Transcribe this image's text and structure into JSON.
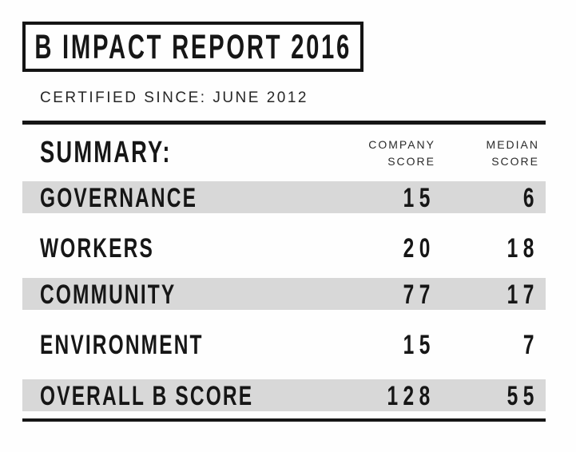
{
  "colors": {
    "ink": "#161616",
    "row_highlight": "#d8d8d8",
    "background": "#fefefe"
  },
  "report": {
    "title": "B IMPACT REPORT 2016",
    "certified_since": "CERTIFIED SINCE: JUNE 2012"
  },
  "table": {
    "summary_label": "SUMMARY:",
    "columns": [
      {
        "line1": "COMPANY",
        "line2": "SCORE"
      },
      {
        "line1": "MEDIAN",
        "line2": "SCORE"
      }
    ],
    "rows": [
      {
        "label": "GOVERNANCE",
        "company_score": "15",
        "median_score": "6",
        "highlighted": true
      },
      {
        "label": "WORKERS",
        "company_score": "20",
        "median_score": "18",
        "highlighted": false
      },
      {
        "label": "COMMUNITY",
        "company_score": "77",
        "median_score": "17",
        "highlighted": true
      },
      {
        "label": "ENVIRONMENT",
        "company_score": "15",
        "median_score": "7",
        "highlighted": false
      },
      {
        "label": "OVERALL B SCORE",
        "company_score": "128",
        "median_score": "55",
        "highlighted": true
      }
    ]
  }
}
